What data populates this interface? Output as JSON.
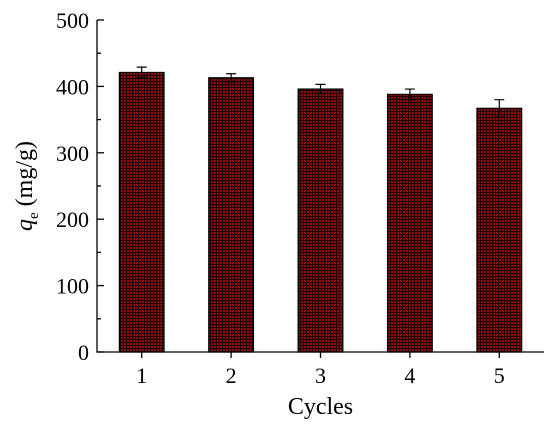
{
  "chart_data": {
    "type": "bar",
    "title": "",
    "xlabel": "Cycles",
    "ylabel": {
      "symbol": "q",
      "subscript": "e",
      "unit": " (mg/g)"
    },
    "categories": [
      "1",
      "2",
      "3",
      "4",
      "5"
    ],
    "values": [
      421,
      413,
      396,
      388,
      367
    ],
    "errors": [
      8,
      6,
      7,
      8,
      13
    ],
    "ylim": [
      0,
      500
    ],
    "yticks": [
      0,
      100,
      200,
      300,
      400,
      500
    ],
    "ytick_labels": [
      "0",
      "100",
      "200",
      "300",
      "400",
      "500"
    ],
    "grid": false,
    "legend": "none",
    "colors": {
      "bar_fill": "#8b0f10",
      "bar_pattern": "#1a0000",
      "axis": "#000000"
    }
  }
}
